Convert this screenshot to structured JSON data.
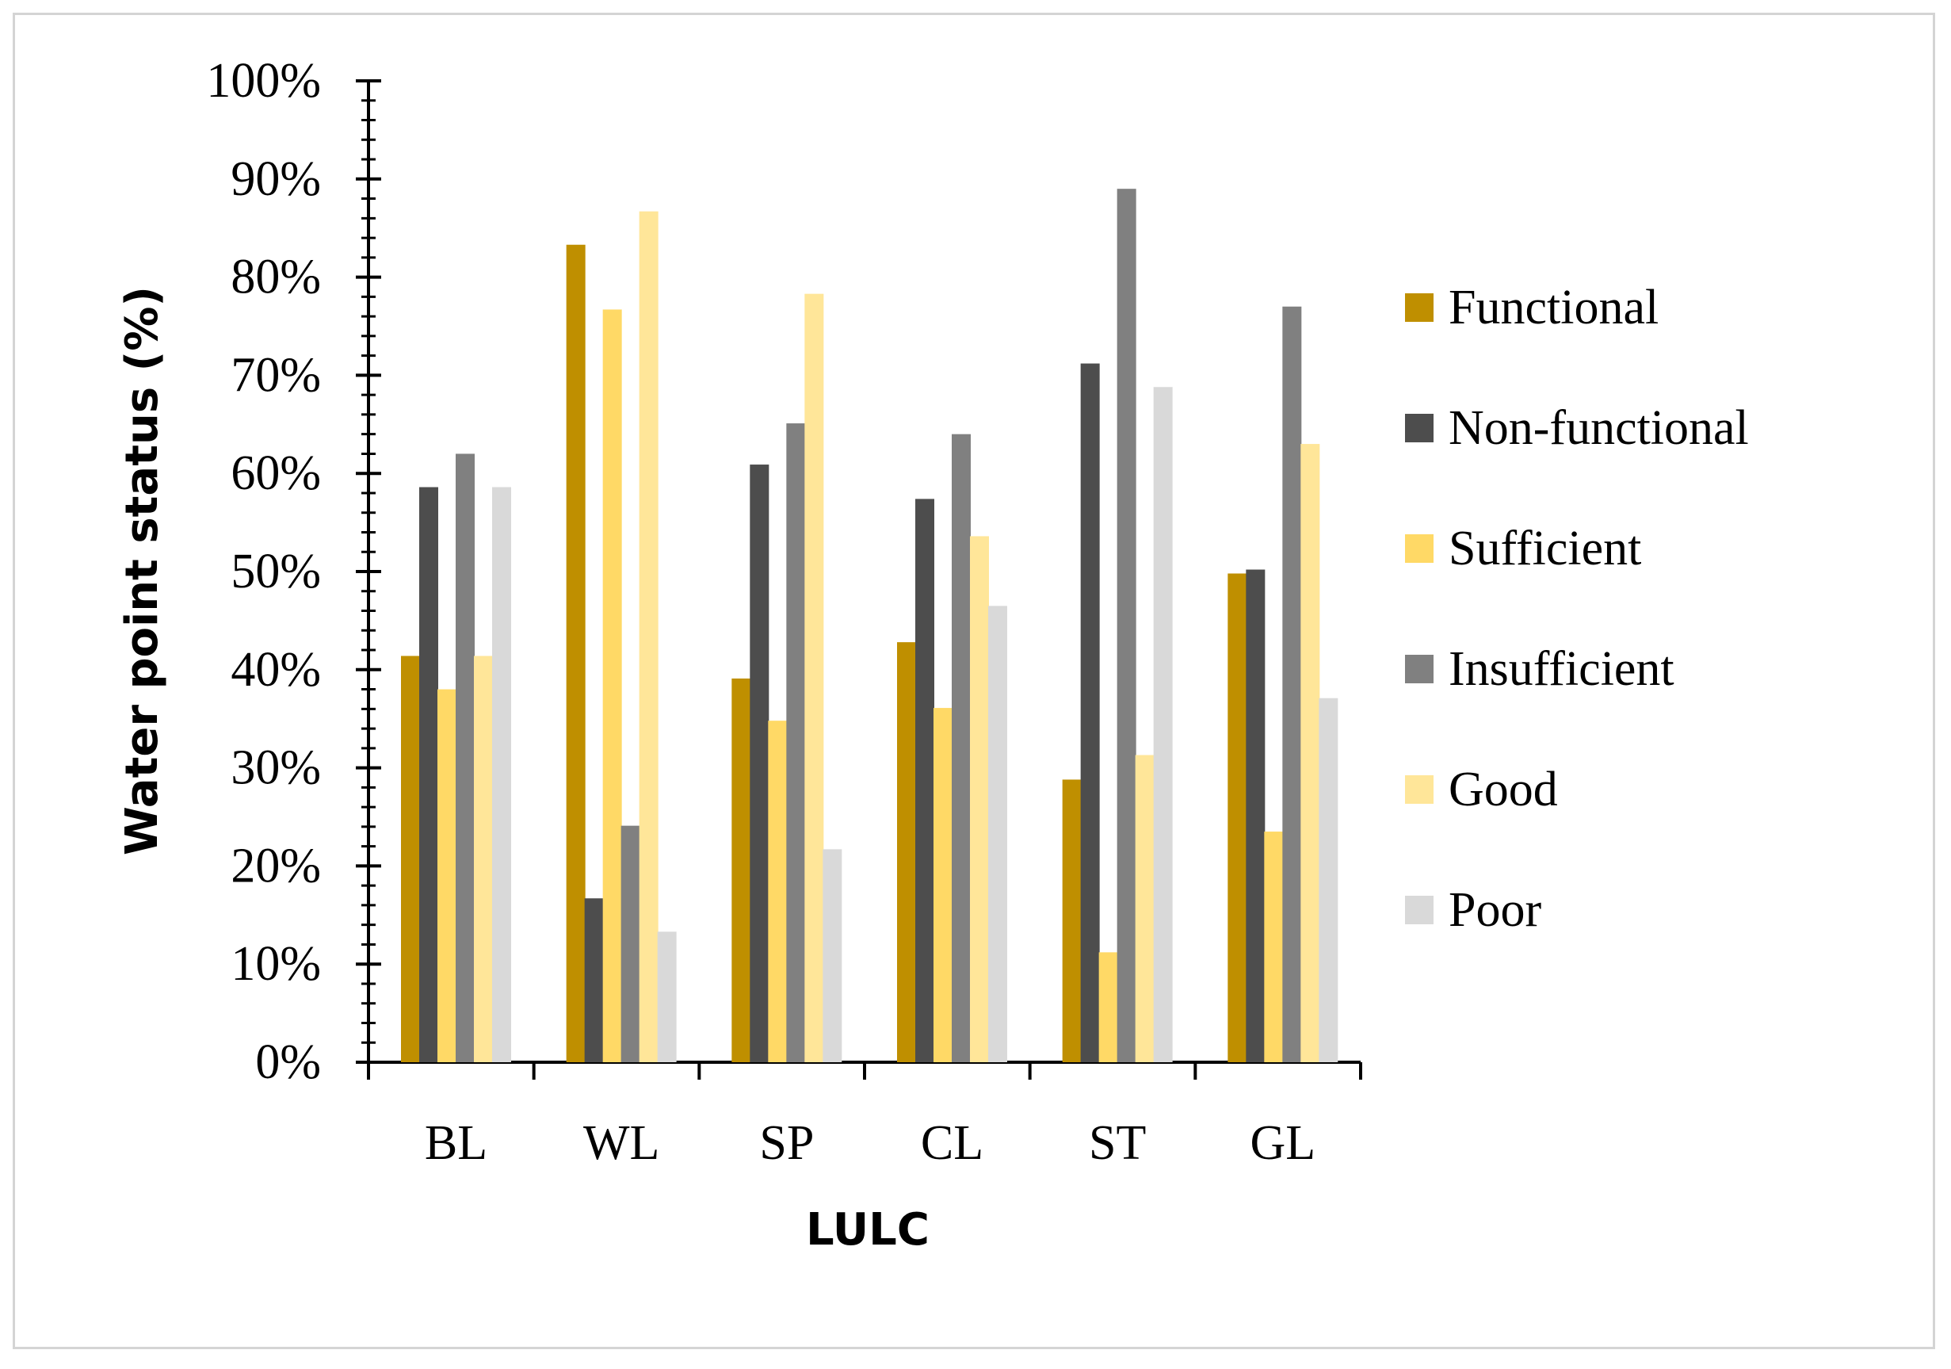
{
  "chart_data": {
    "type": "bar",
    "title": "",
    "xlabel": "LULC",
    "ylabel": "Water point status (%)",
    "ylim": [
      0,
      100
    ],
    "yticks": [
      "0%",
      "10%",
      "20%",
      "30%",
      "40%",
      "50%",
      "60%",
      "70%",
      "80%",
      "90%",
      "100%"
    ],
    "y_minor_ticks": 4,
    "categories": [
      "BL",
      "WL",
      "SP",
      "CL",
      "ST",
      "GL"
    ],
    "series": [
      {
        "name": "Functional",
        "color": "#bf8f00",
        "values": [
          41.4,
          83.3,
          39.1,
          42.8,
          28.8,
          49.8
        ]
      },
      {
        "name": "Non-functional",
        "color": "#4d4d4d",
        "values": [
          58.6,
          16.7,
          60.9,
          57.4,
          71.2,
          50.2
        ]
      },
      {
        "name": "Sufficient",
        "color": "#ffd966",
        "values": [
          38.0,
          76.7,
          34.8,
          36.1,
          11.2,
          23.5
        ]
      },
      {
        "name": "Insufficient",
        "color": "#808080",
        "values": [
          62.0,
          24.1,
          65.1,
          64.0,
          89.0,
          77.0
        ]
      },
      {
        "name": "Good",
        "color": "#ffe699",
        "values": [
          41.4,
          86.7,
          78.3,
          53.6,
          31.3,
          63.0
        ]
      },
      {
        "name": "Poor",
        "color": "#d9d9d9",
        "values": [
          58.6,
          13.3,
          21.7,
          46.5,
          68.8,
          37.1
        ]
      }
    ],
    "grid": false,
    "legend_position": "right"
  }
}
